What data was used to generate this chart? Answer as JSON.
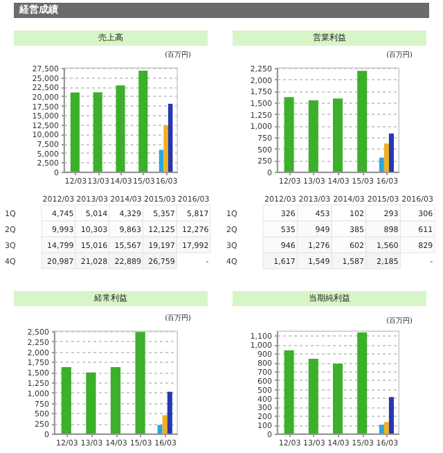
{
  "chart_data": [
    {
      "type": "other",
      "title": "経営成績"
    },
    {
      "type": "bar",
      "title": "売上高",
      "subtitle": "(百万円)",
      "categories": [
        "12/03",
        "13/03",
        "14/03",
        "15/03",
        "16/03"
      ],
      "series": [
        {
          "color": "#3cb02a",
          "values": [
            20987,
            21028,
            22889,
            26759,
            null
          ]
        },
        {
          "color": "#29a8e0",
          "values": [
            null,
            null,
            null,
            null,
            5817
          ]
        },
        {
          "color": "#f0b020",
          "values": [
            null,
            null,
            null,
            null,
            12276
          ]
        },
        {
          "color": "#2438b0",
          "values": [
            null,
            null,
            null,
            null,
            17992
          ]
        }
      ],
      "ylim": [
        0,
        27500
      ],
      "yticks": [
        0,
        {
          "value": 2500,
          "label": "2,500"
        },
        {
          "value": 5000,
          "label": "5,000"
        },
        {
          "value": 7500,
          "label": "7,500"
        },
        {
          "value": 10000,
          "label": "10,000"
        },
        {
          "value": 12500,
          "label": "12,500"
        },
        {
          "value": 15000,
          "label": "15,000"
        },
        {
          "value": 17500,
          "label": "17,500"
        },
        {
          "value": 20000,
          "label": "20,000"
        },
        {
          "value": 22500,
          "label": "22,500"
        },
        {
          "value": 25000,
          "label": "25,000"
        },
        {
          "value": 27500,
          "label": "27,500"
        }
      ],
      "grid": "y"
    },
    {
      "type": "bar",
      "title": "営業利益",
      "subtitle": "(百万円)",
      "categories": [
        "12/03",
        "13/03",
        "14/03",
        "15/03",
        "16/03"
      ],
      "series": [
        {
          "color": "#3cb02a",
          "values": [
            1617,
            1549,
            1587,
            2185,
            null
          ]
        },
        {
          "color": "#29a8e0",
          "values": [
            null,
            null,
            null,
            null,
            306
          ]
        },
        {
          "color": "#f0b020",
          "values": [
            null,
            null,
            null,
            null,
            611
          ]
        },
        {
          "color": "#2438b0",
          "values": [
            null,
            null,
            null,
            null,
            829
          ]
        }
      ],
      "ylim": [
        0,
        2250
      ],
      "yticks": [
        0,
        250,
        500,
        750,
        {
          "value": 1000,
          "label": "1,000"
        },
        {
          "value": 1250,
          "label": "1,250"
        },
        {
          "value": 1500,
          "label": "1,500"
        },
        {
          "value": 1750,
          "label": "1,750"
        },
        {
          "value": 2000,
          "label": "2,000"
        },
        {
          "value": 2250,
          "label": "2,250"
        }
      ],
      "grid": "y"
    },
    {
      "type": "heatmap",
      "categories": [
        "2012/03",
        "2013/03",
        "2014/03",
        "2015/03",
        "2016/03"
      ],
      "y_categories": [
        "1Q",
        "2Q",
        "3Q",
        "4Q"
      ],
      "cells": [
        [
          4745,
          5014,
          4329,
          5357,
          5817
        ],
        [
          9993,
          10303,
          9863,
          12125,
          12276
        ],
        [
          14799,
          15016,
          15567,
          19197,
          17992
        ],
        [
          20987,
          21028,
          22889,
          26759,
          null
        ]
      ],
      "cell_labels": [
        [
          "4,745",
          "5,014",
          "4,329",
          "5,357",
          "5,817"
        ],
        [
          "9,993",
          "10,303",
          "9,863",
          "12,125",
          "12,276"
        ],
        [
          "14,799",
          "15,016",
          "15,567",
          "19,197",
          "17,992"
        ],
        [
          "20,987",
          "21,028",
          "22,889",
          "26,759",
          "-"
        ]
      ]
    },
    {
      "type": "heatmap",
      "categories": [
        "2012/03",
        "2013/03",
        "2014/03",
        "2015/03",
        "2016/03"
      ],
      "y_categories": [
        "1Q",
        "2Q",
        "3Q",
        "4Q"
      ],
      "cells": [
        [
          326,
          453,
          102,
          293,
          306
        ],
        [
          535,
          949,
          385,
          898,
          611
        ],
        [
          946,
          1276,
          602,
          1560,
          829
        ],
        [
          1617,
          1549,
          1587,
          2185,
          null
        ]
      ],
      "cell_labels": [
        [
          "326",
          "453",
          "102",
          "293",
          "306"
        ],
        [
          "535",
          "949",
          "385",
          "898",
          "611"
        ],
        [
          "946",
          "1,276",
          "602",
          "1,560",
          "829"
        ],
        [
          "1,617",
          "1,549",
          "1,587",
          "2,185",
          "-"
        ]
      ]
    },
    {
      "type": "bar",
      "title": "経常利益",
      "subtitle": "(百万円)",
      "categories": [
        "12/03",
        "13/03",
        "14/03",
        "15/03",
        "16/03"
      ],
      "series": [
        {
          "color": "#3cb02a",
          "values": [
            1620,
            1490,
            1620,
            2480,
            null
          ]
        },
        {
          "color": "#29a8e0",
          "values": [
            null,
            null,
            null,
            null,
            210
          ]
        },
        {
          "color": "#f0b020",
          "values": [
            null,
            null,
            null,
            null,
            450
          ]
        },
        {
          "color": "#2438b0",
          "values": [
            null,
            null,
            null,
            null,
            1020
          ]
        }
      ],
      "ylim": [
        0,
        2500
      ],
      "yticks": [
        0,
        250,
        500,
        750,
        {
          "value": 1000,
          "label": "1,000"
        },
        {
          "value": 1250,
          "label": "1,250"
        },
        {
          "value": 1500,
          "label": "1,500"
        },
        {
          "value": 1750,
          "label": "1,750"
        },
        {
          "value": 2000,
          "label": "2,000"
        },
        {
          "value": 2250,
          "label": "2,250"
        },
        {
          "value": 2500,
          "label": "2,500"
        }
      ],
      "grid": "y"
    },
    {
      "type": "bar",
      "title": "当期純利益",
      "subtitle": "(百万円)",
      "categories": [
        "12/03",
        "13/03",
        "14/03",
        "15/03",
        "16/03"
      ],
      "series": [
        {
          "color": "#3cb02a",
          "values": [
            935,
            840,
            785,
            1135,
            null
          ]
        },
        {
          "color": "#29a8e0",
          "values": [
            null,
            null,
            null,
            null,
            100
          ]
        },
        {
          "color": "#f0b020",
          "values": [
            null,
            null,
            null,
            null,
            130
          ]
        },
        {
          "color": "#2438b0",
          "values": [
            null,
            null,
            null,
            null,
            410
          ]
        }
      ],
      "ylim": [
        0,
        1150
      ],
      "yticks": [
        0,
        100,
        200,
        300,
        400,
        500,
        600,
        700,
        800,
        900,
        {
          "value": 1000,
          "label": "1,000"
        },
        {
          "value": 1100,
          "label": "1,100"
        }
      ],
      "grid": "y"
    }
  ]
}
